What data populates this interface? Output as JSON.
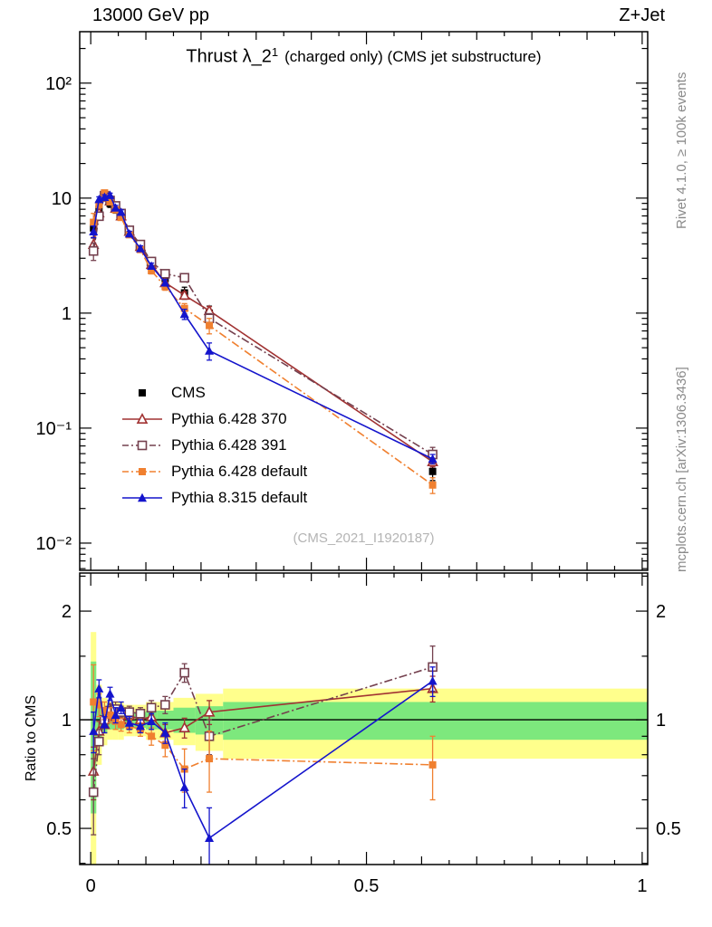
{
  "header": {
    "left": "13000 GeV pp",
    "right": "Z+Jet"
  },
  "title": {
    "main": "Thrust λ_2",
    "sup": "1",
    "rest": "(charged only) (CMS jet substructure)"
  },
  "watermark": "(CMS_2021_I1920187)",
  "side_captions": {
    "top": "Rivet 4.1.0, ≥ 100k events",
    "bottom": "mcplots.cern.ch [arXiv:1306.3436]"
  },
  "ratio_ylabel": "Ratio to CMS",
  "colors": {
    "frame": "#000000",
    "band_yellow": "#ffff8c",
    "band_green": "#7de87d",
    "caption_gray": "#8a8a8a",
    "watermark_gray": "#b4b4b4"
  },
  "chart_data": {
    "type": "scatter",
    "title": "Thrust λ_2^1 (charged only) (CMS jet substructure)",
    "xlabel": "",
    "ylabel": "",
    "ratio_label": "Ratio to CMS",
    "legend_position": "middle-left",
    "grid": false,
    "x_centers": [
      0.005,
      0.015,
      0.025,
      0.035,
      0.045,
      0.055,
      0.07,
      0.09,
      0.11,
      0.135,
      0.17,
      0.215,
      0.62
    ],
    "bin_edges": [
      0,
      0.01,
      0.02,
      0.03,
      0.04,
      0.05,
      0.06,
      0.08,
      0.1,
      0.12,
      0.15,
      0.19,
      0.24,
      1.01
    ],
    "axes": {
      "x": {
        "min": -0.02,
        "max": 1.01,
        "major_ticks": [
          0,
          0.5,
          1
        ],
        "labels": [
          "0",
          "0.5",
          "1"
        ]
      },
      "y_main": {
        "scale": "log",
        "min": 0.0058,
        "max": 280,
        "ticks": [
          {
            "v": 100,
            "label": "10²"
          },
          {
            "v": 10,
            "label": "10"
          },
          {
            "v": 1,
            "label": "1"
          },
          {
            "v": 0.1,
            "label": "10⁻¹"
          },
          {
            "v": 0.01,
            "label": "10⁻²"
          }
        ]
      },
      "y_ratio": {
        "scale": "log",
        "min": 0.397,
        "max": 2.55,
        "ticks": [
          {
            "v": 2,
            "label": "2"
          },
          {
            "v": 1,
            "label": "1"
          },
          {
            "v": 0.5,
            "label": "0.5"
          }
        ],
        "minor_ticks": [
          0.4,
          0.6,
          0.7,
          0.8,
          0.9,
          1.5,
          2.5
        ]
      }
    },
    "bands": {
      "yellow_half": [
        0.75,
        0.25,
        0.15,
        0.12,
        0.12,
        0.12,
        0.1,
        0.1,
        0.12,
        0.12,
        0.15,
        0.18,
        0.22
      ],
      "green_half": [
        0.45,
        0.12,
        0.08,
        0.06,
        0.06,
        0.06,
        0.05,
        0.05,
        0.06,
        0.06,
        0.08,
        0.09,
        0.12
      ]
    },
    "series": [
      {
        "name": "CMS",
        "color": "#000000",
        "marker": "square-filled",
        "line": "none",
        "values": [
          5.5,
          8.0,
          10.5,
          9.0,
          8.0,
          7.0,
          5.0,
          3.8,
          2.6,
          2.0,
          1.5,
          1.0,
          0.042
        ],
        "errs": [
          1.0,
          0.9,
          0.8,
          0.7,
          0.6,
          0.5,
          0.4,
          0.3,
          0.25,
          0.2,
          0.18,
          0.15,
          0.007
        ],
        "ratio": null,
        "ratio_err": null
      },
      {
        "name": "Pythia 6.428 370",
        "color": "#a13232",
        "marker": "triangle-open",
        "line": "solid",
        "values": [
          3.96,
          7.44,
          10.2,
          9.45,
          8.16,
          7.0,
          5.15,
          3.8,
          2.65,
          1.84,
          1.43,
          1.05,
          0.051
        ],
        "errs": [
          0.6,
          0.5,
          0.5,
          0.45,
          0.4,
          0.35,
          0.25,
          0.2,
          0.15,
          0.12,
          0.1,
          0.09,
          0.005
        ],
        "ratio": [
          0.72,
          0.93,
          0.97,
          1.05,
          1.02,
          1.0,
          1.03,
          1.0,
          1.02,
          0.92,
          0.95,
          1.05,
          1.22
        ],
        "ratio_err": [
          0.12,
          0.06,
          0.05,
          0.05,
          0.04,
          0.04,
          0.04,
          0.04,
          0.05,
          0.05,
          0.06,
          0.08,
          0.1
        ]
      },
      {
        "name": "Pythia 6.428 391",
        "color": "#74404e",
        "marker": "square-open",
        "line": "dashdot",
        "values": [
          3.47,
          6.96,
          10.5,
          9.54,
          8.56,
          7.35,
          5.25,
          3.95,
          2.81,
          2.2,
          2.03,
          0.9,
          0.059
        ],
        "errs": [
          0.6,
          0.5,
          0.5,
          0.45,
          0.4,
          0.35,
          0.25,
          0.2,
          0.15,
          0.13,
          0.15,
          0.09,
          0.009
        ],
        "ratio": [
          0.63,
          0.87,
          1.0,
          1.06,
          1.07,
          1.05,
          1.05,
          1.04,
          1.08,
          1.1,
          1.35,
          0.9,
          1.4
        ],
        "ratio_err": [
          0.15,
          0.07,
          0.05,
          0.05,
          0.05,
          0.04,
          0.04,
          0.04,
          0.05,
          0.06,
          0.08,
          0.1,
          0.2
        ]
      },
      {
        "name": "Pythia 6.428 default",
        "color": "#f08030",
        "marker": "square-filled",
        "line": "dashdot",
        "values": [
          6.16,
          8.8,
          11.1,
          9.27,
          7.92,
          6.79,
          4.8,
          3.57,
          2.34,
          1.7,
          1.1,
          0.78,
          0.032
        ],
        "errs": [
          1.2,
          0.6,
          0.55,
          0.5,
          0.45,
          0.35,
          0.25,
          0.2,
          0.15,
          0.12,
          0.11,
          0.12,
          0.005
        ],
        "ratio": [
          1.12,
          1.1,
          1.06,
          1.03,
          0.99,
          0.97,
          0.96,
          0.94,
          0.9,
          0.85,
          0.73,
          0.78,
          0.75
        ],
        "ratio_err": [
          0.3,
          0.08,
          0.06,
          0.05,
          0.05,
          0.04,
          0.04,
          0.04,
          0.05,
          0.06,
          0.1,
          0.15,
          0.15
        ]
      },
      {
        "name": "Pythia 8.315 default",
        "color": "#1414cc",
        "marker": "triangle-filled",
        "line": "solid",
        "values": [
          5.12,
          9.76,
          10.2,
          10.6,
          8.24,
          7.56,
          4.9,
          3.65,
          2.57,
          1.84,
          0.98,
          0.47,
          0.054
        ],
        "errs": [
          0.6,
          0.5,
          0.5,
          0.45,
          0.4,
          0.35,
          0.25,
          0.2,
          0.15,
          0.12,
          0.1,
          0.08,
          0.005
        ],
        "ratio": [
          0.93,
          1.22,
          0.97,
          1.18,
          1.03,
          1.08,
          0.98,
          0.96,
          0.99,
          0.92,
          0.65,
          0.47,
          1.28
        ],
        "ratio_err": [
          0.12,
          0.07,
          0.05,
          0.05,
          0.05,
          0.04,
          0.04,
          0.04,
          0.05,
          0.06,
          0.08,
          0.1,
          0.12
        ]
      }
    ]
  }
}
